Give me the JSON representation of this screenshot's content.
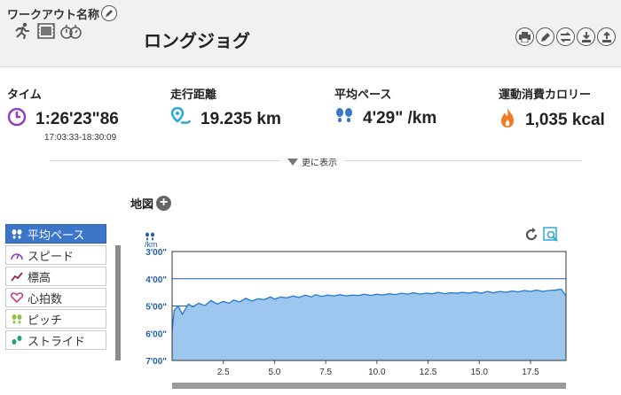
{
  "header": {
    "workout_name_label": "ワークアウト名称",
    "title": "ロングジョグ",
    "type_icons": [
      "runner-icon",
      "video-icon",
      "stopwatch-icon"
    ],
    "actions": [
      "print-icon",
      "edit-icon",
      "swap-icon",
      "download-icon",
      "upload-icon"
    ]
  },
  "stats": [
    {
      "label": "タイム",
      "value": "1:26'23\"86",
      "sub": "17:03:33-18:30:09",
      "icon": "clock-icon",
      "color": "#8e3fbf"
    },
    {
      "label": "走行距離",
      "value": "19.235 km",
      "icon": "map-pin-icon",
      "color": "#2ca8d6"
    },
    {
      "label": "平均ペース",
      "value": "4'29\" /km",
      "icon": "footsteps-icon",
      "color": "#3b76c9"
    },
    {
      "label": "運動消費カロリー",
      "value": "1,035 kcal",
      "icon": "flame-icon",
      "color": "#f07b22"
    }
  ],
  "more_label": "更に表示",
  "map": {
    "label": "地図"
  },
  "metrics": [
    {
      "label": "平均ペース",
      "icon": "footsteps-icon",
      "active": true
    },
    {
      "label": "スピード",
      "icon": "speedometer-icon",
      "active": false
    },
    {
      "label": "標高",
      "icon": "elevation-icon",
      "active": false
    },
    {
      "label": "心拍数",
      "icon": "heart-icon",
      "active": false
    },
    {
      "label": "ピッチ",
      "icon": "steps-icon",
      "active": false
    },
    {
      "label": "ストライド",
      "icon": "stride-icon",
      "active": false
    }
  ],
  "chart_unit": "/km",
  "chart_data": {
    "type": "area",
    "y_ticks": [
      "3'00\"",
      "4'00\"",
      "5'00\"",
      "6'00\"",
      "7'00\""
    ],
    "y_tick_values": [
      180,
      240,
      300,
      360,
      420
    ],
    "ylim": [
      180,
      420
    ],
    "y_inverted": true,
    "x_ticks": [
      "2.5",
      "5.0",
      "7.5",
      "10.0",
      "12.5",
      "15.0",
      "17.5"
    ],
    "x_tick_values": [
      2.5,
      5.0,
      7.5,
      10.0,
      12.5,
      15.0,
      17.5
    ],
    "xlim": [
      0,
      19.235
    ],
    "grid": true,
    "series": [
      {
        "x": [
          0,
          0.1,
          0.3,
          0.5,
          0.8,
          1.0,
          1.3,
          1.6,
          1.9,
          2.2,
          2.5,
          2.8,
          3.0,
          3.3,
          3.6,
          3.9,
          4.2,
          4.5,
          4.8,
          5.0,
          5.3,
          5.6,
          5.9,
          6.2,
          6.5,
          6.8,
          7.0,
          7.3,
          7.6,
          7.9,
          8.2,
          8.5,
          8.8,
          9.1,
          9.4,
          9.7,
          10.0,
          10.3,
          10.6,
          10.9,
          11.2,
          11.5,
          11.8,
          12.1,
          12.4,
          12.7,
          13.0,
          13.3,
          13.6,
          13.9,
          14.2,
          14.5,
          14.8,
          15.1,
          15.4,
          15.7,
          16.0,
          16.3,
          16.6,
          16.9,
          17.2,
          17.5,
          17.8,
          18.1,
          18.4,
          18.7,
          19.0,
          19.235
        ],
        "y": [
          355,
          310,
          300,
          318,
          296,
          302,
          294,
          299,
          288,
          296,
          290,
          294,
          287,
          291,
          283,
          289,
          284,
          286,
          280,
          285,
          280,
          282,
          278,
          281,
          276,
          280,
          275,
          279,
          276,
          278,
          275,
          278,
          276,
          277,
          274,
          277,
          274,
          276,
          273,
          275,
          272,
          274,
          271,
          274,
          272,
          273,
          270,
          273,
          271,
          272,
          270,
          272,
          269,
          272,
          268,
          271,
          268,
          270,
          267,
          269,
          266,
          268,
          265,
          268,
          266,
          265,
          263,
          278
        ]
      }
    ]
  }
}
